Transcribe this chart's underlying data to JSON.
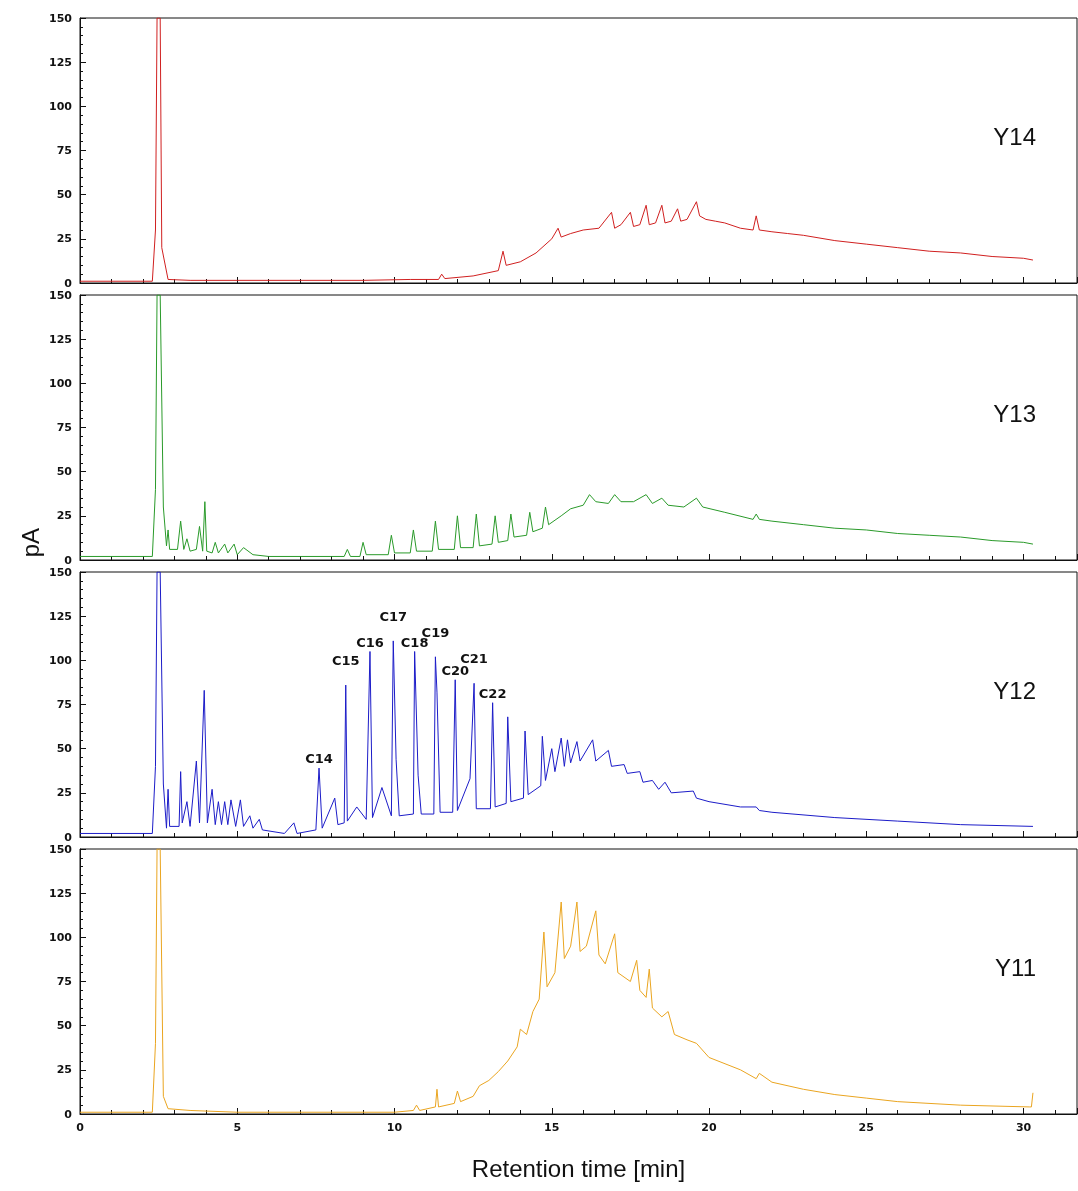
{
  "chart_data": [
    {
      "type": "line",
      "color": "#d02020",
      "ylim": [
        0,
        150
      ],
      "yticks": [
        0,
        25,
        50,
        75,
        100,
        125,
        150
      ],
      "xlim": [
        0,
        31.7
      ],
      "xticks": [
        0,
        5,
        10,
        15,
        20,
        25,
        30
      ],
      "tick_labels": "y",
      "annotations": [
        "Y14"
      ],
      "x": [
        0,
        2.3,
        2.4,
        2.45,
        2.55,
        2.6,
        2.8,
        3.5,
        5,
        7,
        9,
        10.5,
        11.4,
        11.5,
        11.6,
        12.5,
        13.3,
        13.45,
        13.55,
        14,
        14.5,
        15,
        15.2,
        15.3,
        15.6,
        16,
        16.5,
        16.9,
        17,
        17.2,
        17.5,
        17.6,
        17.8,
        18,
        18.1,
        18.3,
        18.5,
        18.6,
        18.8,
        19,
        19.1,
        19.3,
        19.6,
        19.7,
        19.9,
        20.2,
        20.5,
        21,
        21.4,
        21.5,
        21.6,
        22,
        22.5,
        23,
        24,
        25,
        26,
        27,
        28,
        29,
        30,
        30.3
      ],
      "values": [
        1,
        1,
        30,
        150,
        150,
        20,
        2,
        1.5,
        1.5,
        1.5,
        1.5,
        2,
        2,
        5,
        2.5,
        4,
        7,
        18,
        10,
        12,
        17,
        25,
        31,
        26,
        28,
        30,
        31,
        40,
        31,
        33,
        40,
        32,
        33,
        44,
        33,
        34,
        44,
        34,
        35,
        42,
        35,
        36,
        46,
        38,
        36,
        35,
        34,
        31,
        30,
        38,
        30,
        29,
        28,
        27,
        24,
        22,
        20,
        18,
        17,
        15,
        14,
        13
      ]
    },
    {
      "type": "line",
      "color": "#2a9a2a",
      "ylim": [
        0,
        150
      ],
      "yticks": [
        0,
        25,
        50,
        75,
        100,
        125,
        150
      ],
      "xlim": [
        0,
        31.7
      ],
      "xticks": [
        0,
        5,
        10,
        15,
        20,
        25,
        30
      ],
      "tick_labels": "y",
      "ylabel": "pA",
      "annotations": [
        "Y13"
      ],
      "x": [
        0,
        2.3,
        2.4,
        2.45,
        2.55,
        2.65,
        2.75,
        2.8,
        2.85,
        3.1,
        3.2,
        3.3,
        3.4,
        3.5,
        3.7,
        3.8,
        3.9,
        3.97,
        4.03,
        4.2,
        4.3,
        4.4,
        4.6,
        4.7,
        4.9,
        5.0,
        5.2,
        5.5,
        6,
        7,
        8,
        8.4,
        8.5,
        8.6,
        8.9,
        9.0,
        9.1,
        9.8,
        9.9,
        10.0,
        10.5,
        10.6,
        10.7,
        11.2,
        11.3,
        11.4,
        11.9,
        12.0,
        12.1,
        12.5,
        12.6,
        12.7,
        13.1,
        13.2,
        13.3,
        13.6,
        13.7,
        13.8,
        14.2,
        14.3,
        14.4,
        14.7,
        14.8,
        14.9,
        15.3,
        15.6,
        16.0,
        16.2,
        16.4,
        16.8,
        17.0,
        17.2,
        17.6,
        18.0,
        18.2,
        18.5,
        18.7,
        19.2,
        19.6,
        19.8,
        20.5,
        21.4,
        21.5,
        21.6,
        22,
        23,
        24,
        25,
        26,
        27,
        28,
        29,
        30,
        30.3
      ],
      "values": [
        2,
        2,
        40,
        150,
        150,
        30,
        8,
        17,
        6,
        6,
        22,
        6,
        12,
        5,
        6,
        19,
        5,
        33,
        5,
        4,
        10,
        4,
        9,
        4,
        9,
        3,
        7,
        3,
        2,
        2,
        2,
        2,
        6,
        2,
        2,
        10,
        3,
        3,
        14,
        4,
        4,
        17,
        5,
        5,
        22,
        6,
        6,
        25,
        7,
        7,
        26,
        8,
        9,
        25,
        10,
        11,
        26,
        13,
        14,
        27,
        16,
        18,
        30,
        20,
        25,
        29,
        31,
        37,
        33,
        32,
        37,
        33,
        33,
        37,
        32,
        35,
        31,
        30,
        35,
        30,
        27,
        23,
        26,
        23,
        22,
        20,
        18,
        17,
        15,
        14,
        13,
        11,
        10,
        9
      ]
    },
    {
      "type": "line",
      "color": "#1c1cc8",
      "ylim": [
        0,
        150
      ],
      "yticks": [
        0,
        25,
        50,
        75,
        100,
        125,
        150
      ],
      "xlim": [
        0,
        31.7
      ],
      "xticks": [
        0,
        5,
        10,
        15,
        20,
        25,
        30
      ],
      "tick_labels": "y",
      "annotations": [
        "Y12",
        {
          "text": "C14",
          "x": 7.6,
          "y": 39
        },
        {
          "text": "C15",
          "x": 8.45,
          "y": 86
        },
        {
          "text": "C16",
          "x": 9.22,
          "y": 105
        },
        {
          "text": "C17",
          "x": 9.96,
          "y": 111
        },
        {
          "text": "C18",
          "x": 10.64,
          "y": 105
        },
        {
          "text": "C19",
          "x": 11.3,
          "y": 102
        },
        {
          "text": "C20",
          "x": 11.93,
          "y": 89
        },
        {
          "text": "C21",
          "x": 12.53,
          "y": 87
        },
        {
          "text": "C22",
          "x": 13.12,
          "y": 76
        }
      ],
      "x": [
        0,
        2.3,
        2.4,
        2.45,
        2.55,
        2.65,
        2.75,
        2.8,
        2.85,
        3.15,
        3.2,
        3.25,
        3.4,
        3.5,
        3.7,
        3.8,
        3.95,
        4.05,
        4.2,
        4.3,
        4.4,
        4.5,
        4.6,
        4.7,
        4.8,
        4.95,
        5.1,
        5.2,
        5.4,
        5.5,
        5.7,
        5.8,
        6.5,
        6.8,
        6.9,
        7.5,
        7.6,
        7.7,
        8.1,
        8.2,
        8.4,
        8.45,
        8.5,
        8.8,
        9.1,
        9.22,
        9.3,
        9.6,
        9.9,
        9.96,
        10.05,
        10.15,
        10.6,
        10.64,
        10.75,
        10.85,
        11.25,
        11.3,
        11.35,
        11.45,
        11.85,
        11.93,
        12.0,
        12.4,
        12.53,
        12.6,
        13.05,
        13.12,
        13.2,
        13.55,
        13.6,
        13.7,
        14.1,
        14.15,
        14.25,
        14.65,
        14.7,
        14.8,
        15,
        15.1,
        15.3,
        15.4,
        15.5,
        15.6,
        15.8,
        15.9,
        16.3,
        16.4,
        16.8,
        16.9,
        17.3,
        17.4,
        17.8,
        17.9,
        18.2,
        18.4,
        18.6,
        18.8,
        19.5,
        19.6,
        20,
        21,
        21.5,
        21.6,
        22,
        24,
        26,
        28,
        30.3
      ],
      "values": [
        2,
        2,
        40,
        150,
        150,
        30,
        5,
        27,
        6,
        6,
        37,
        8,
        20,
        6,
        43,
        8,
        83,
        8,
        27,
        7,
        20,
        7,
        20,
        7,
        21,
        6,
        21,
        6,
        12,
        5,
        10,
        4,
        2,
        8,
        2,
        4,
        39,
        5,
        22,
        7,
        8,
        86,
        9,
        17,
        10,
        105,
        11,
        28,
        12,
        111,
        44,
        12,
        13,
        105,
        35,
        13,
        13,
        102,
        82,
        14,
        14,
        89,
        15,
        33,
        87,
        16,
        16,
        76,
        17,
        19,
        68,
        20,
        22,
        60,
        24,
        29,
        57,
        32,
        50,
        37,
        56,
        40,
        55,
        42,
        54,
        43,
        55,
        43,
        49,
        40,
        41,
        36,
        37,
        31,
        32,
        27,
        31,
        25,
        26,
        22,
        20,
        17,
        17,
        15,
        14,
        11,
        9,
        7,
        6
      ]
    },
    {
      "type": "line",
      "color": "#eaa520",
      "ylim": [
        0,
        150
      ],
      "yticks": [
        0,
        25,
        50,
        75,
        100,
        125,
        150
      ],
      "xlim": [
        0,
        31.7
      ],
      "xticks": [
        0,
        5,
        10,
        15,
        20,
        25,
        30
      ],
      "xlabel": "Retention time [min]",
      "annotations": [
        "Y11"
      ],
      "x": [
        0,
        2.3,
        2.4,
        2.45,
        2.55,
        2.65,
        2.8,
        3.5,
        5,
        8,
        10,
        10.6,
        10.7,
        10.8,
        11.3,
        11.35,
        11.4,
        11.9,
        12,
        12.1,
        12.5,
        12.7,
        13,
        13.3,
        13.6,
        13.9,
        14,
        14.2,
        14.4,
        14.6,
        14.75,
        14.85,
        15.1,
        15.3,
        15.4,
        15.6,
        15.8,
        15.9,
        16.1,
        16.4,
        16.5,
        16.7,
        17,
        17.1,
        17.5,
        17.7,
        17.8,
        18.0,
        18.1,
        18.2,
        18.5,
        18.7,
        18.9,
        19.3,
        19.6,
        20,
        21,
        21.5,
        21.6,
        22,
        23,
        24,
        25,
        26,
        28,
        30.2,
        30.25,
        30.3
      ],
      "values": [
        1,
        1,
        40,
        150,
        150,
        10,
        3,
        2,
        1,
        1,
        1,
        2,
        5,
        2,
        4,
        14,
        4,
        6,
        13,
        7,
        10,
        16,
        19,
        24,
        30,
        38,
        48,
        45,
        58,
        65,
        103,
        72,
        80,
        120,
        88,
        95,
        120,
        92,
        95,
        115,
        90,
        85,
        102,
        80,
        75,
        87,
        70,
        66,
        82,
        60,
        55,
        58,
        45,
        42,
        40,
        32,
        25,
        20,
        23,
        18,
        14,
        11,
        9,
        7,
        5,
        4,
        4,
        12
      ]
    }
  ]
}
